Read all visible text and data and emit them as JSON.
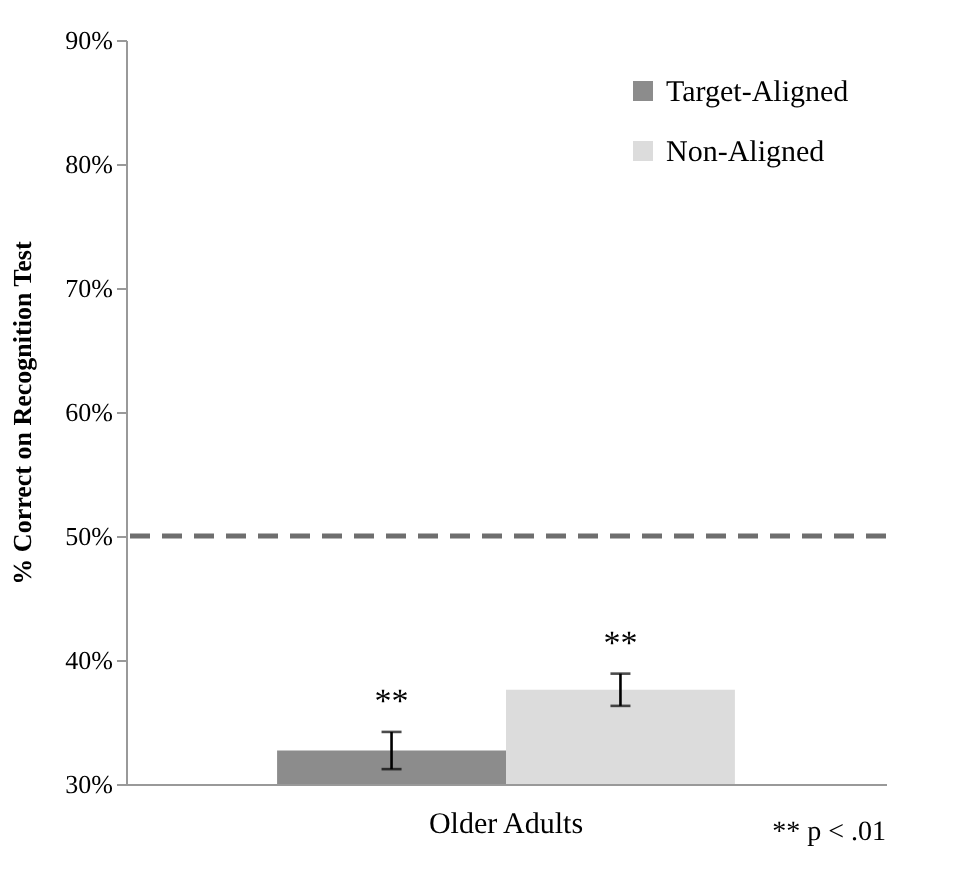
{
  "chart_data": {
    "type": "bar",
    "ylabel": "% Correct on Recognition Test",
    "categories": [
      "Older Adults"
    ],
    "series": [
      {
        "name": "Target-Aligned",
        "color": "#8c8c8c",
        "values": [
          32.7
        ],
        "errors": [
          1.5
        ]
      },
      {
        "name": "Non-Aligned",
        "color": "#dcdcdc",
        "values": [
          37.6
        ],
        "errors": [
          1.3
        ]
      }
    ],
    "ylim": [
      30,
      90
    ],
    "yticks": [
      {
        "value": 30,
        "label": "30%"
      },
      {
        "value": 40,
        "label": "40%"
      },
      {
        "value": 50,
        "label": "50%"
      },
      {
        "value": 60,
        "label": "60%"
      },
      {
        "value": 70,
        "label": "70%"
      },
      {
        "value": 80,
        "label": "80%"
      },
      {
        "value": 90,
        "label": "90%"
      }
    ],
    "ref_lines": [
      {
        "axis": "y",
        "value": 50,
        "color": "#6e6e6e",
        "line_style": "dashed"
      }
    ],
    "annotations": [
      "**",
      "**",
      "** p < .01"
    ],
    "grid": false,
    "legend": "top right"
  }
}
